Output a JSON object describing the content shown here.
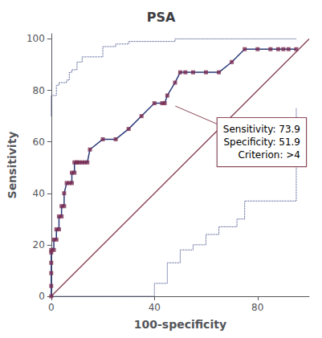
{
  "chart_data": {
    "type": "line",
    "title": "PSA",
    "xlabel": "100-specificity",
    "ylabel": "Sensitivity",
    "xlim": [
      0,
      100
    ],
    "ylim": [
      0,
      102
    ],
    "xticks": [
      0,
      40,
      80
    ],
    "yticks": [
      0,
      20,
      40,
      60,
      80,
      100
    ],
    "grid": false,
    "series": [
      {
        "type": "line",
        "color": "#8B4A5A",
        "x": [
          0,
          100
        ],
        "values": [
          0,
          100
        ]
      },
      {
        "type": "step",
        "color": "#2B3A7A",
        "line_style": "dotted",
        "x": [
          0,
          0,
          1,
          2,
          3,
          5,
          6,
          7,
          8,
          10,
          12,
          15,
          20,
          25,
          30,
          35,
          40,
          48,
          95
        ],
        "values": [
          70,
          78,
          78,
          82,
          83,
          83,
          84,
          87,
          88,
          91,
          93,
          93,
          97,
          98,
          99,
          99,
          99,
          100,
          100
        ]
      },
      {
        "type": "step",
        "color": "#2B3A7A",
        "line_style": "dotted",
        "x": [
          0,
          1,
          5,
          10,
          15,
          20,
          25,
          30,
          35,
          40,
          45,
          50,
          55,
          60,
          65,
          70,
          72,
          75,
          95
        ],
        "values": [
          0,
          0,
          0,
          0,
          0,
          0,
          0,
          0,
          0,
          5,
          13,
          18,
          20,
          24,
          27,
          27,
          30,
          37,
          73
        ]
      },
      {
        "type": "line",
        "color": "#2B3A7A",
        "x": [
          0,
          0,
          0,
          0,
          0,
          0,
          1,
          1,
          2,
          2,
          3,
          3,
          4,
          4,
          5,
          5,
          6,
          7,
          8,
          8,
          9,
          9,
          10,
          10,
          11,
          12,
          13,
          14,
          15,
          20,
          25,
          30,
          35,
          40,
          43,
          44,
          45,
          48,
          50,
          52,
          55,
          60,
          65,
          70,
          75,
          80,
          85,
          88,
          90,
          92,
          95
        ],
        "values": [
          0,
          4,
          9,
          13,
          17,
          18,
          18,
          22,
          22,
          26,
          26,
          31,
          31,
          35,
          35,
          40,
          44,
          44,
          44,
          48,
          48,
          52,
          52,
          52,
          52,
          52,
          52,
          52,
          57,
          61,
          61,
          65,
          70,
          75,
          75,
          75,
          78,
          83,
          87,
          87,
          87,
          87,
          87,
          91,
          96,
          96,
          96,
          96,
          96,
          96,
          96
        ]
      },
      {
        "type": "scatter",
        "color": "#7B2D52",
        "marker": "square",
        "x": [
          0,
          0,
          0,
          0,
          0,
          0,
          1,
          1,
          2,
          2,
          3,
          3,
          4,
          4,
          5,
          5,
          6,
          7,
          8,
          8,
          9,
          9,
          10,
          10,
          11,
          12,
          13,
          14,
          15,
          20,
          25,
          30,
          35,
          40,
          43,
          44,
          45,
          48,
          50,
          52,
          55,
          60,
          65,
          70,
          75,
          80,
          85,
          88,
          90,
          92,
          95
        ],
        "values": [
          0,
          4,
          9,
          13,
          17,
          18,
          18,
          22,
          22,
          26,
          26,
          31,
          31,
          35,
          35,
          40,
          44,
          44,
          44,
          48,
          48,
          52,
          52,
          52,
          52,
          52,
          52,
          52,
          57,
          61,
          61,
          65,
          70,
          75,
          75,
          75,
          78,
          83,
          87,
          87,
          87,
          87,
          87,
          91,
          96,
          96,
          96,
          96,
          96,
          96,
          96
        ]
      }
    ],
    "annotations": [
      {
        "text": "Sensitivity: 73.9\nSpecificity: 51.9\nCriterion: >4",
        "x": 48.1,
        "y": 73.9,
        "color": "#8B4A5A"
      }
    ]
  }
}
